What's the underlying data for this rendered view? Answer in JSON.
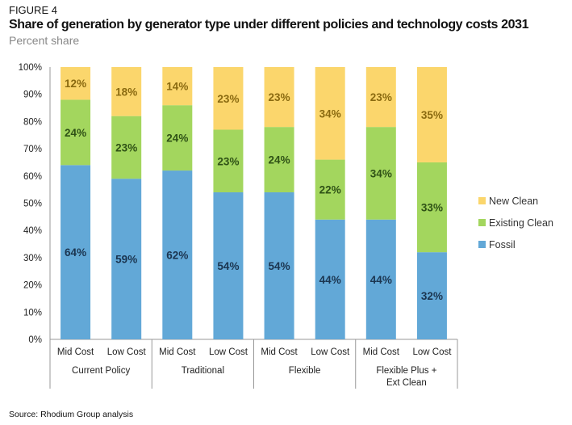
{
  "figure_label": "FIGURE 4",
  "source": "Source: Rhodium Group analysis",
  "chart_data": {
    "type": "bar",
    "stacked": true,
    "title": "Share of generation by generator type under different policies and technology costs 2031",
    "subtitle": "Percent share",
    "categories": [
      "Mid Cost",
      "Low Cost",
      "Mid Cost",
      "Low Cost",
      "Mid Cost",
      "Low Cost",
      "Mid Cost",
      "Low Cost"
    ],
    "groups": [
      {
        "label": "Current Policy"
      },
      {
        "label": "Traditional"
      },
      {
        "label": "Flexible"
      },
      {
        "label": "Flexible Plus +\nExt Clean"
      }
    ],
    "series": [
      {
        "name": "Fossil",
        "color": "#62a8d7",
        "label_color": "#1b3550",
        "values": [
          64,
          59,
          62,
          54,
          54,
          44,
          44,
          32
        ]
      },
      {
        "name": "Existing Clean",
        "color": "#a3d65e",
        "label_color": "#2f5216",
        "values": [
          24,
          23,
          24,
          23,
          24,
          22,
          34,
          33
        ]
      },
      {
        "name": "New Clean",
        "color": "#fbd66c",
        "label_color": "#8a6a10",
        "values": [
          12,
          18,
          14,
          23,
          23,
          34,
          23,
          35
        ]
      }
    ],
    "ylim": [
      0,
      100
    ],
    "yticks": [
      "0%",
      "10%",
      "20%",
      "30%",
      "40%",
      "50%",
      "60%",
      "70%",
      "80%",
      "90%",
      "100%"
    ],
    "legend": "right",
    "grid": false
  }
}
